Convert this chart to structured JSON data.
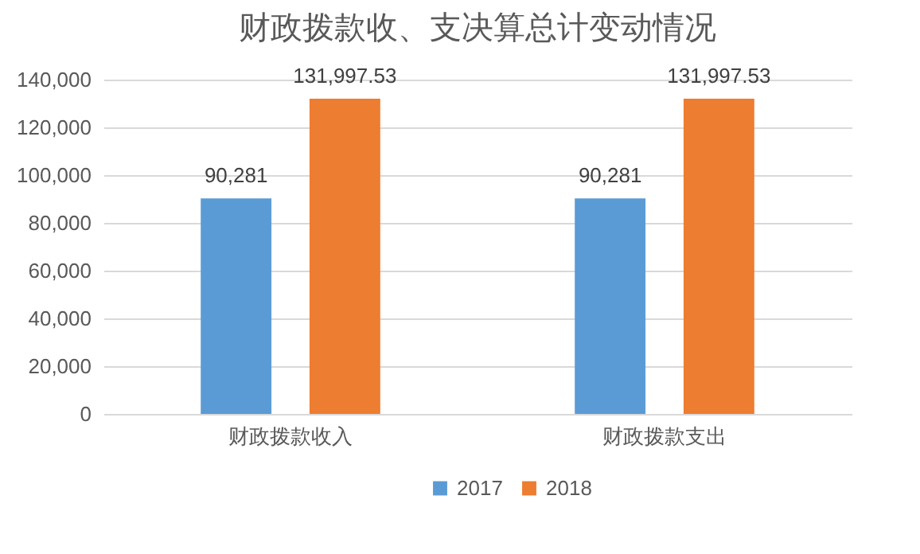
{
  "chart_data": {
    "type": "bar",
    "title": "财政拨款收、支决算总计变动情况",
    "categories": [
      "财政拨款收入",
      "财政拨款支出"
    ],
    "series": [
      {
        "name": "2017",
        "color": "#5b9bd5",
        "values": [
          90281,
          90281
        ],
        "value_labels": [
          "90,281",
          "90,281"
        ]
      },
      {
        "name": "2018",
        "color": "#ed7d31",
        "values": [
          131997.53,
          131997.53
        ],
        "value_labels": [
          "131,997.53",
          "131,997.53"
        ]
      }
    ],
    "ylim": [
      0,
      140000
    ],
    "yticks": [
      {
        "value": 0,
        "label": "0"
      },
      {
        "value": 20000,
        "label": "20,000"
      },
      {
        "value": 40000,
        "label": "40,000"
      },
      {
        "value": 60000,
        "label": "60,000"
      },
      {
        "value": 80000,
        "label": "80,000"
      },
      {
        "value": 100000,
        "label": "100,000"
      },
      {
        "value": 120000,
        "label": "120,000"
      },
      {
        "value": 140000,
        "label": "140,000"
      }
    ],
    "grid": "y",
    "legend": "bottom"
  }
}
